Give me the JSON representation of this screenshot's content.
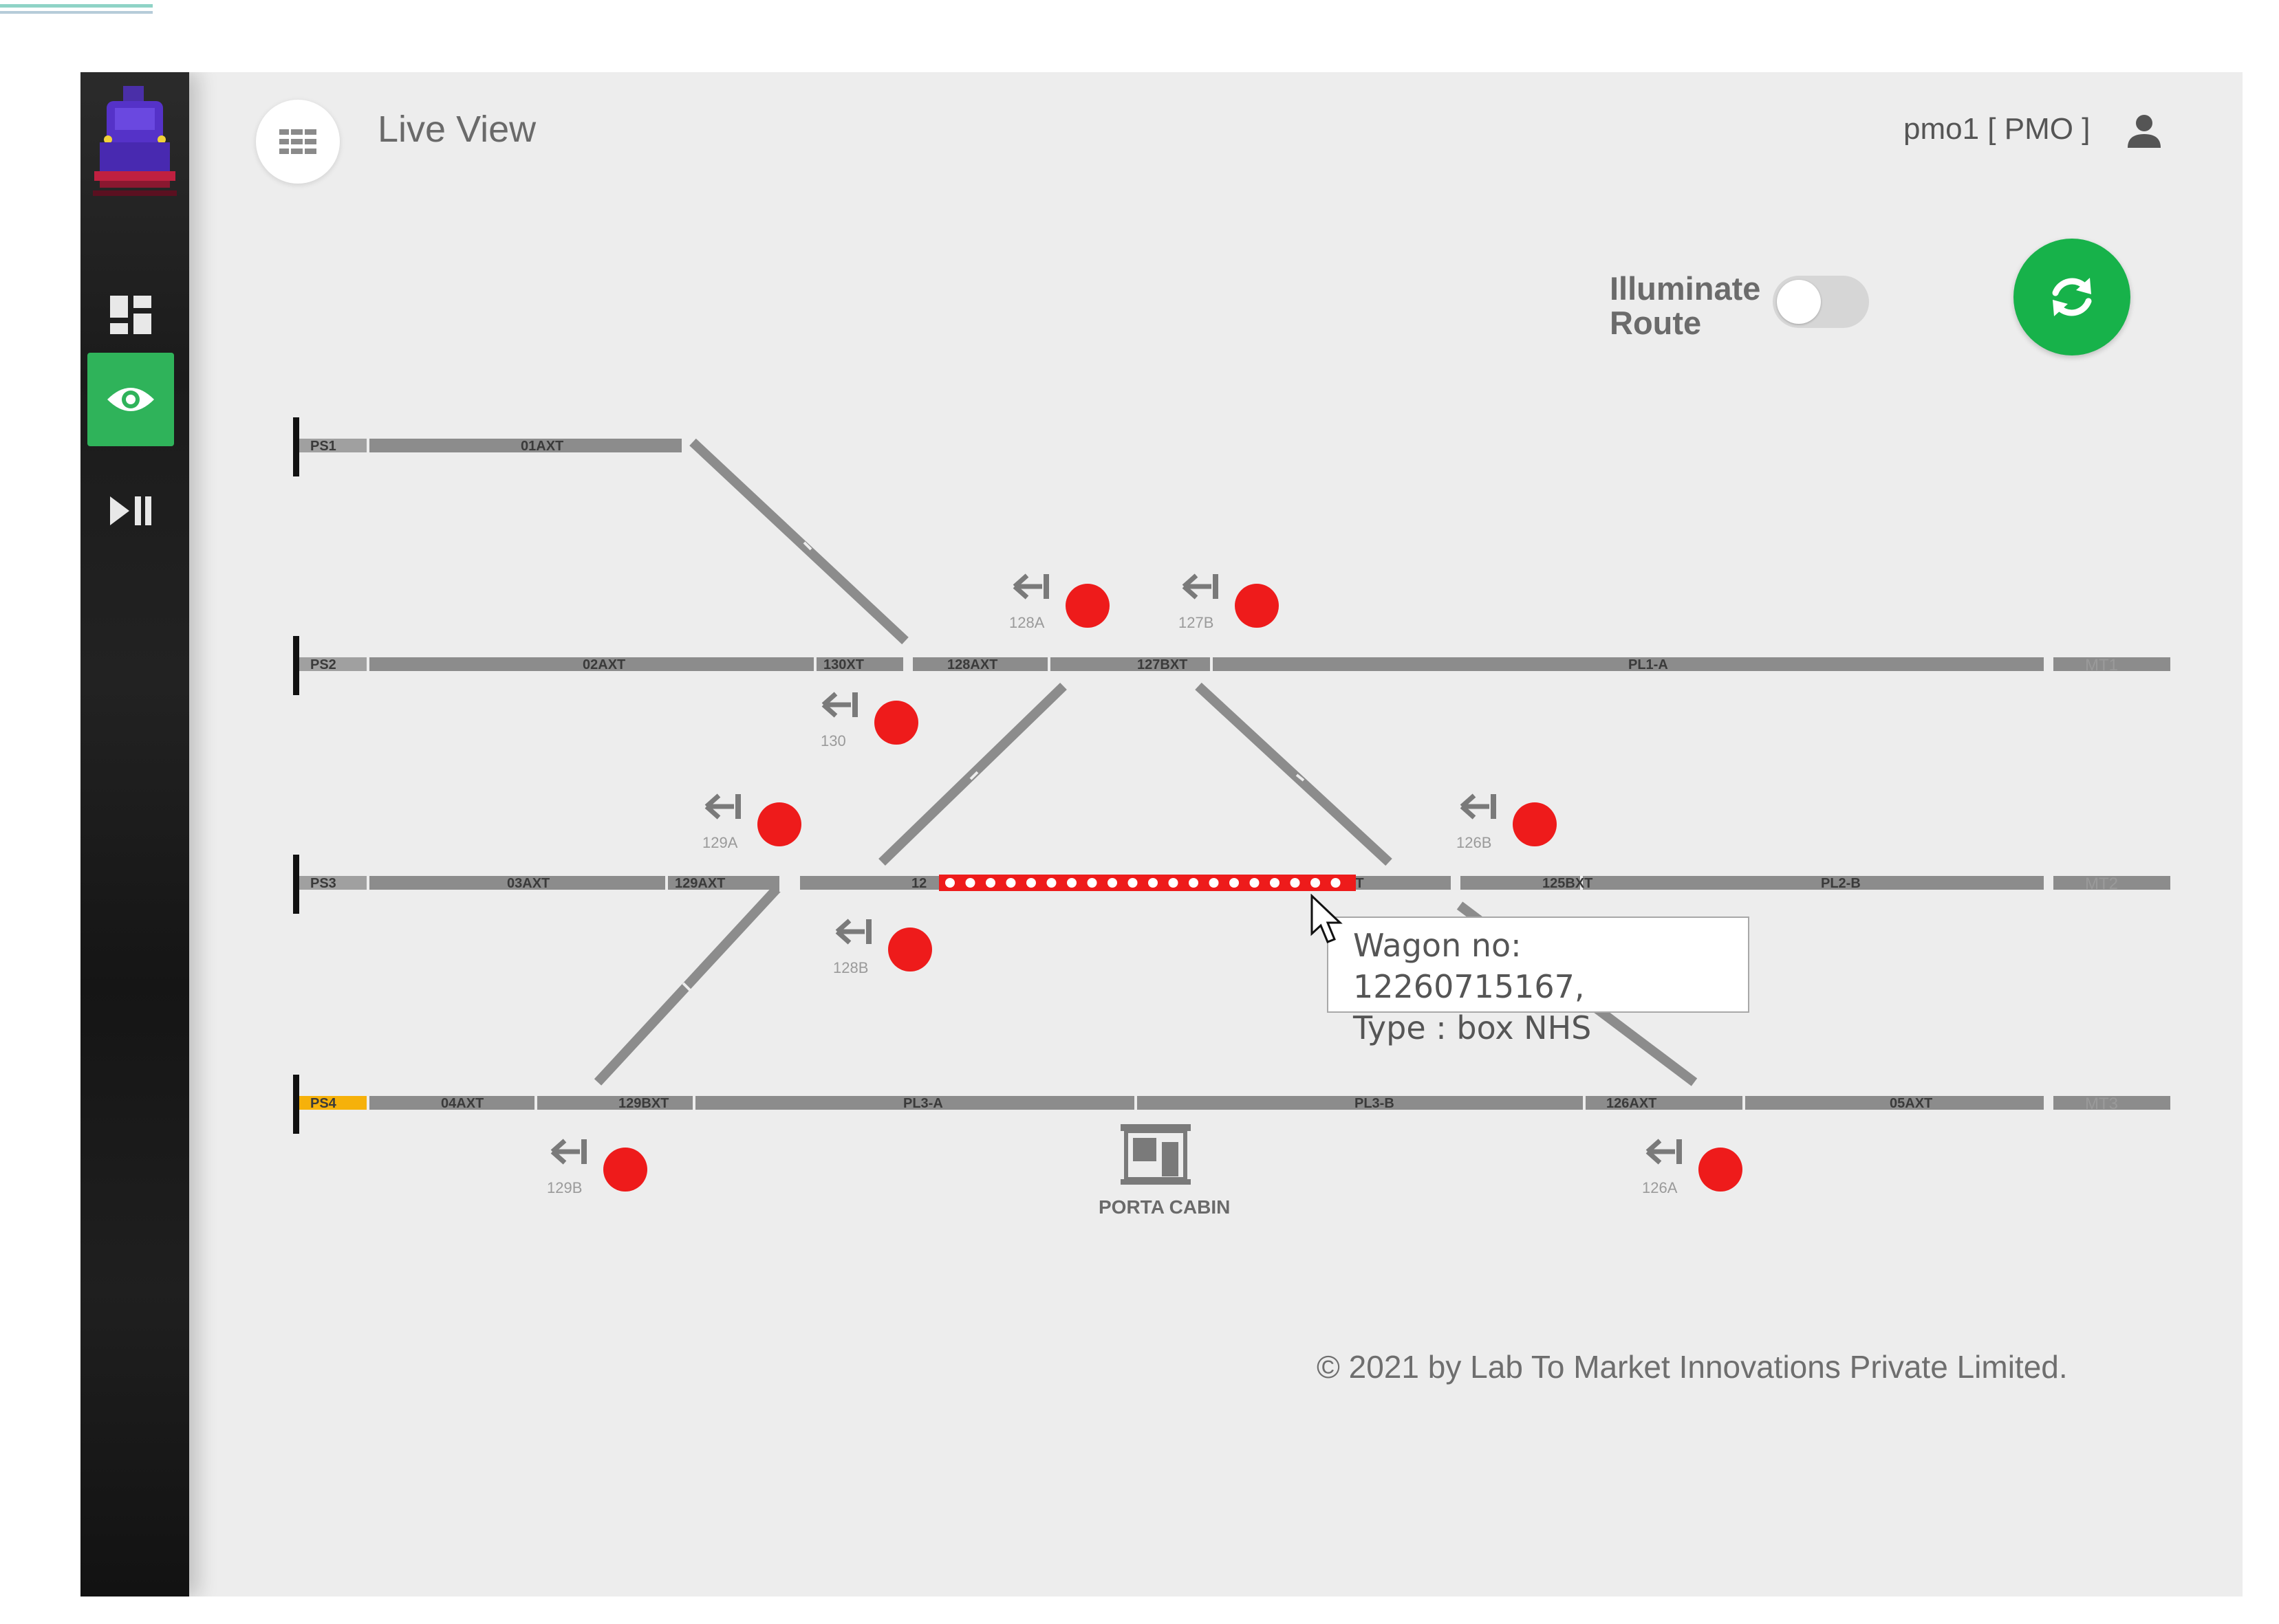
{
  "header": {
    "title": "Live View",
    "user": "pmo1 [ PMO ]"
  },
  "sidebar": {
    "items": [
      {
        "name": "dashboard",
        "icon": "dashboard-icon",
        "active": false
      },
      {
        "name": "live-view",
        "icon": "eye-icon",
        "active": true
      },
      {
        "name": "playback",
        "icon": "play-pause-icon",
        "active": false
      }
    ]
  },
  "controls": {
    "illuminate_line1": "Illuminate",
    "illuminate_line2": "Route",
    "illuminate_on": false,
    "refresh_icon": "refresh-icon"
  },
  "yard": {
    "lines": [
      {
        "id": "PS1",
        "segments": [
          "01AXT"
        ]
      },
      {
        "id": "PS2",
        "segments": [
          "02AXT",
          "130XT",
          "128AXT",
          "127BXT",
          "PL1-A"
        ],
        "end": "MT1"
      },
      {
        "id": "PS3",
        "segments": [
          "03AXT",
          "129AXT",
          "12",
          "XT",
          "125BXT",
          "PL2-B"
        ],
        "end": "MT2",
        "occupied": true
      },
      {
        "id": "PS4",
        "segments": [
          "04AXT",
          "129BXT",
          "PL3-A",
          "PL3-B",
          "126AXT",
          "05AXT"
        ],
        "end": "MT3",
        "highlight": "#f6b10a"
      }
    ],
    "signals": [
      {
        "label": "128A",
        "aspect": "red"
      },
      {
        "label": "127B",
        "aspect": "red"
      },
      {
        "label": "130",
        "aspect": "red"
      },
      {
        "label": "129A",
        "aspect": "red"
      },
      {
        "label": "126B",
        "aspect": "red"
      },
      {
        "label": "128B",
        "aspect": "red"
      },
      {
        "label": "129B",
        "aspect": "red"
      },
      {
        "label": "126A",
        "aspect": "red"
      }
    ],
    "cabin_label": "PORTA CABIN",
    "colors": {
      "track": "#8c8c8c",
      "occupied": "#ee1b1b",
      "signal": "#ee1b1b",
      "ps4": "#f6b10a"
    }
  },
  "tooltip": {
    "line1": "Wagon no: 12260715167,",
    "line2": "Type : box NHS"
  },
  "footer": "© 2021 by Lab To Market Innovations Private Limited."
}
